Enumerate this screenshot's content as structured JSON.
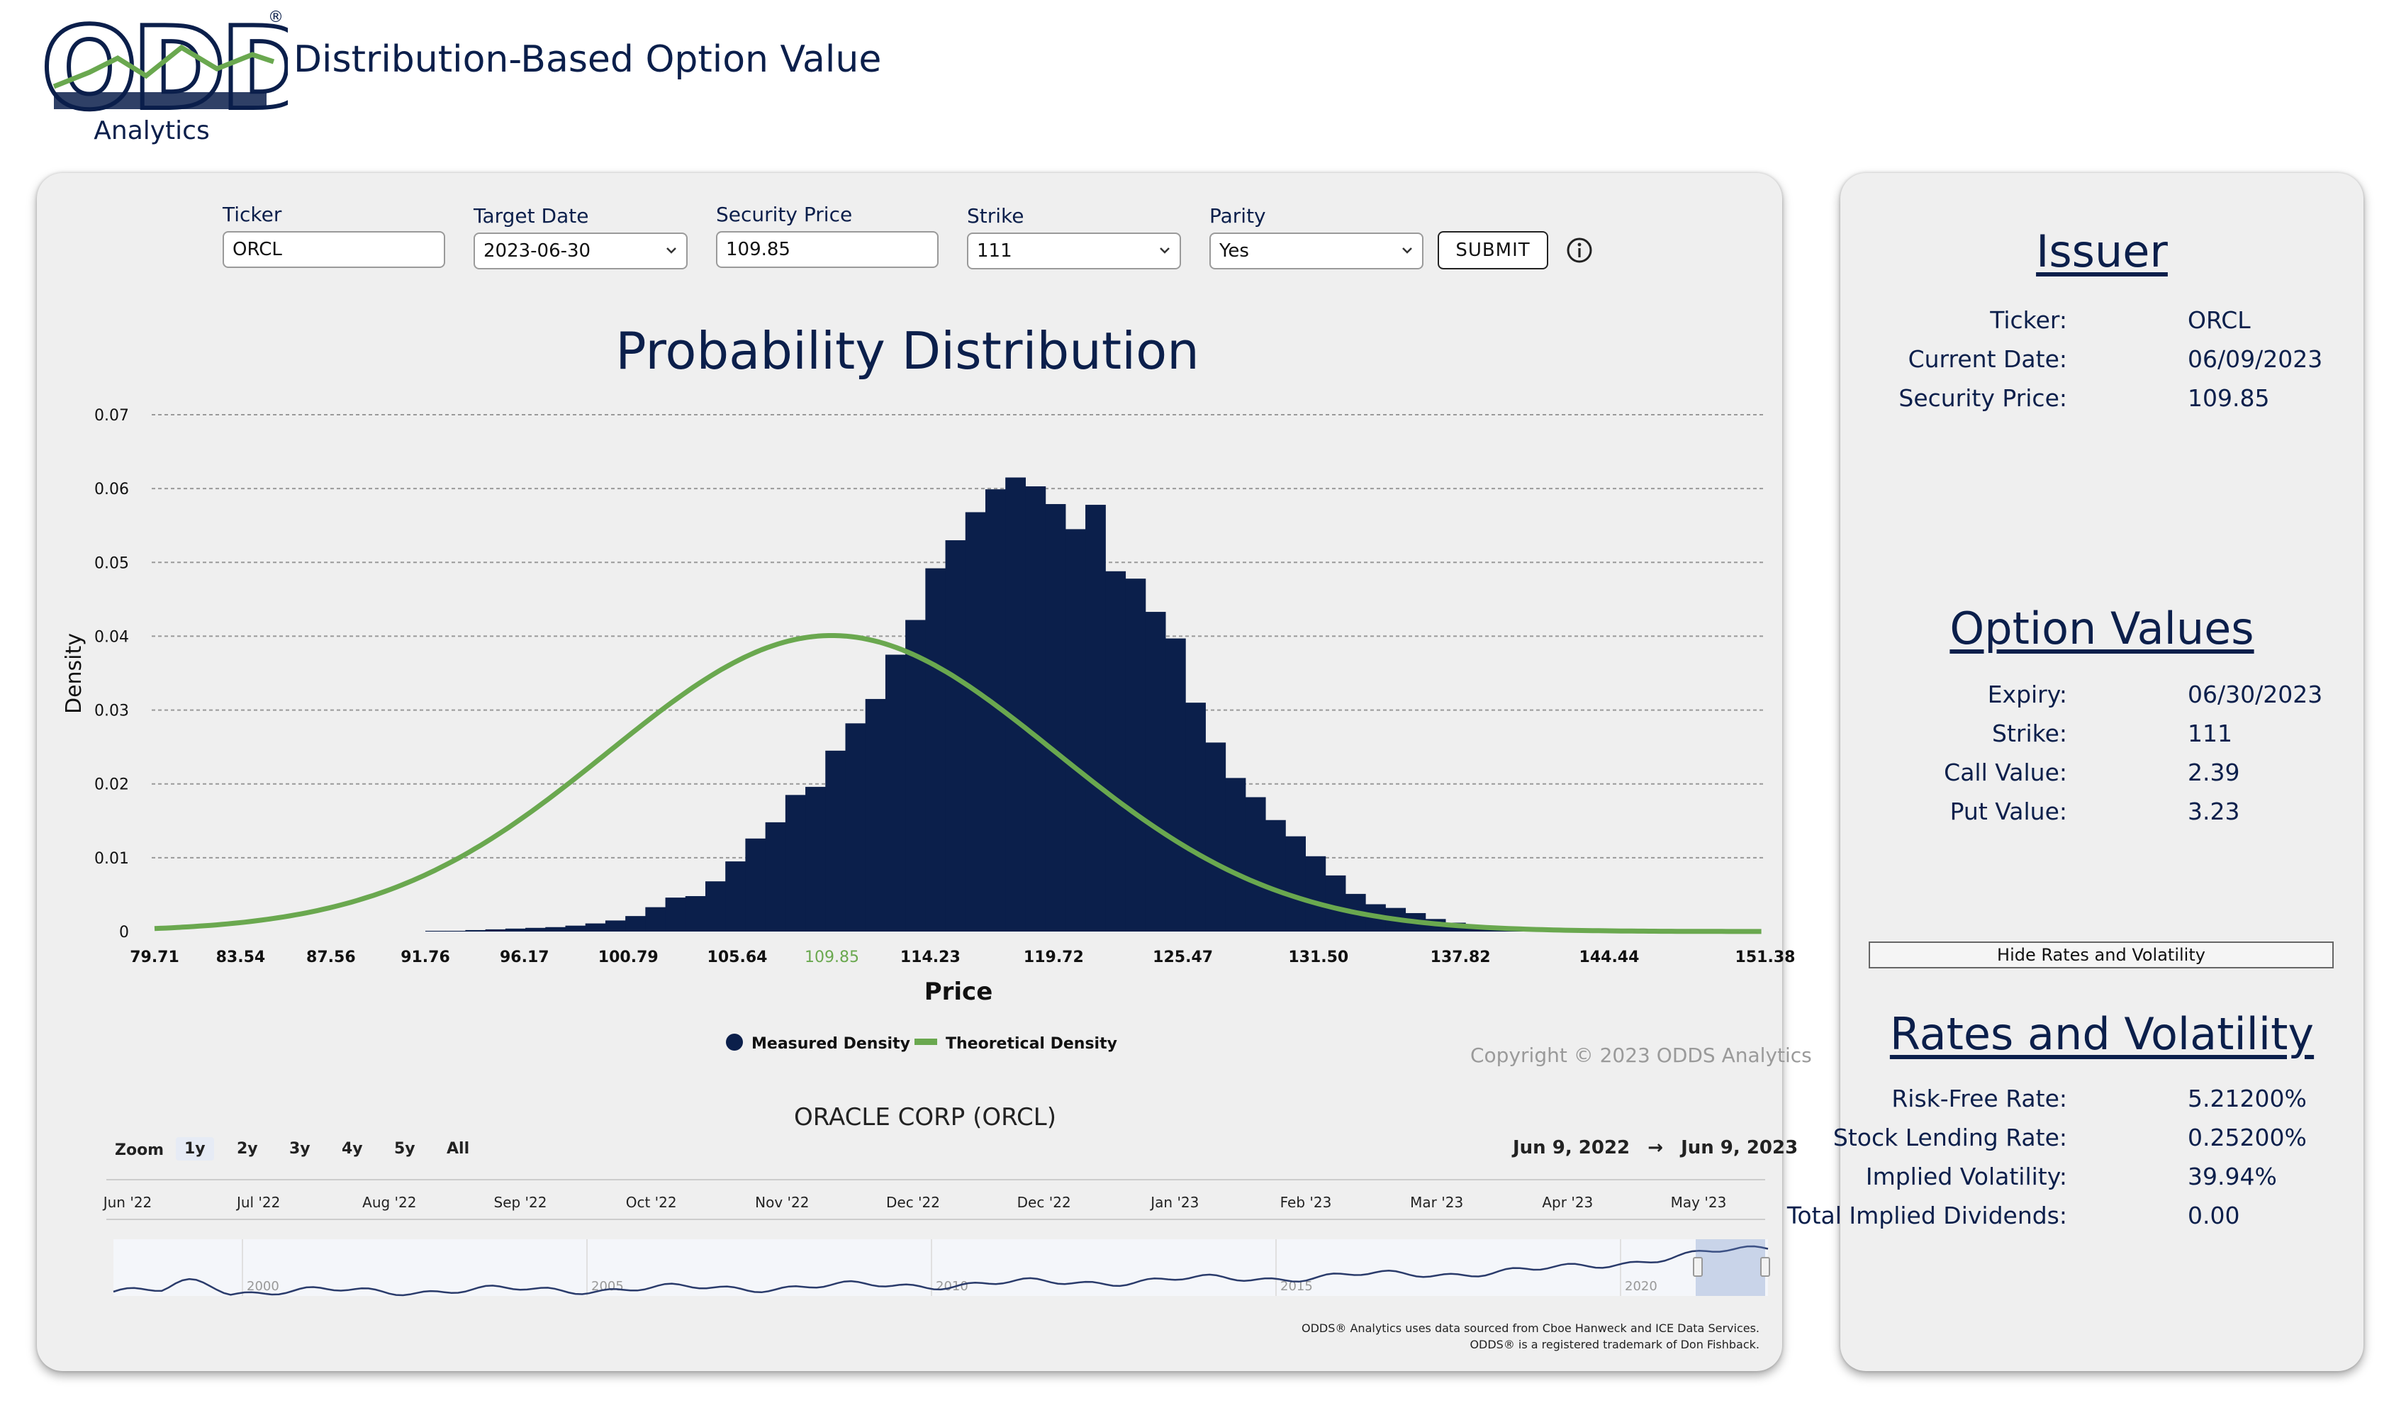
{
  "app": {
    "logo_text": "ODDS",
    "logo_trademark": "®",
    "logo_subtitle": "Analytics",
    "title": "Distribution-Based Option Value"
  },
  "form": {
    "ticker": {
      "label": "Ticker",
      "value": "ORCL"
    },
    "target_date": {
      "label": "Target Date",
      "value": "2023-06-30"
    },
    "security_price": {
      "label": "Security Price",
      "value": "109.85"
    },
    "strike": {
      "label": "Strike",
      "value": "111"
    },
    "parity": {
      "label": "Parity",
      "value": "Yes"
    },
    "submit_label": "SUBMIT",
    "info_icon": "info-circle-icon"
  },
  "chart_data": {
    "type": "bar",
    "title": "Probability Distribution",
    "xlabel": "Price",
    "ylabel": "Density",
    "x_range": [
      79.71,
      151.38
    ],
    "ylim": [
      0,
      0.07
    ],
    "y_ticks": [
      "0",
      "0.01",
      "0.02",
      "0.03",
      "0.04",
      "0.05",
      "0.06",
      "0.07"
    ],
    "x_ticks": [
      "79.71",
      "83.54",
      "87.56",
      "91.76",
      "96.17",
      "100.79",
      "105.64",
      "109.85",
      "114.23",
      "119.72",
      "125.47",
      "131.50",
      "137.82",
      "144.44",
      "151.38"
    ],
    "highlight_tick": "109.85",
    "highlight_color": "#6aa84f",
    "grid": true,
    "legend_position": "bottom-center",
    "series": [
      {
        "name": "Measured Density",
        "kind": "histogram",
        "color": "#0b1f4b",
        "x_start": 91.76,
        "bin_width": 0.89,
        "values": [
          0.0001,
          0.0001,
          0.0002,
          0.0003,
          0.0004,
          0.0005,
          0.0006,
          0.0008,
          0.0011,
          0.0015,
          0.0021,
          0.0033,
          0.0046,
          0.0048,
          0.0068,
          0.0095,
          0.0126,
          0.0148,
          0.0185,
          0.0196,
          0.0245,
          0.0282,
          0.0315,
          0.0375,
          0.0422,
          0.0492,
          0.053,
          0.0568,
          0.0599,
          0.0615,
          0.0603,
          0.0579,
          0.0545,
          0.0578,
          0.0488,
          0.0478,
          0.0433,
          0.0397,
          0.031,
          0.0256,
          0.0208,
          0.0182,
          0.0151,
          0.0129,
          0.0102,
          0.0076,
          0.0051,
          0.0037,
          0.0032,
          0.0025,
          0.0017,
          0.0012,
          0.0008,
          0.0006,
          0.0004,
          0.0003,
          0.0002,
          0.0001,
          0.0001,
          0.0001,
          0.0001,
          0.0001,
          0.0001
        ]
      },
      {
        "name": "Theoretical Density",
        "kind": "line",
        "color": "#6aa84f",
        "mean": 109.85,
        "std": 9.95
      }
    ]
  },
  "copyright": "Copyright © 2023 ODDS Analytics",
  "stock_chart": {
    "title": "ORACLE CORP (ORCL)",
    "zoom_label": "Zoom",
    "zoom_options": [
      "1y",
      "2y",
      "3y",
      "4y",
      "5y",
      "All"
    ],
    "zoom_active": "1y",
    "range_start": "Jun 9, 2022",
    "range_arrow": "→",
    "range_end": "Jun 9, 2023",
    "month_ticks": [
      "Jun '22",
      "Jul '22",
      "Aug '22",
      "Sep '22",
      "Oct '22",
      "Nov '22",
      "Dec '22",
      "Dec '22",
      "Jan '23",
      "Feb '23",
      "Mar '23",
      "Apr '23",
      "May '23"
    ],
    "navigator_years": [
      "2000",
      "2005",
      "2010",
      "2015",
      "2020"
    ]
  },
  "footer": {
    "note1": "ODDS® Analytics uses data sourced from Cboe Hanweck and ICE Data Services.",
    "note2": "ODDS® is a registered trademark of Don Fishback."
  },
  "issuer": {
    "title": "Issuer",
    "rows": [
      {
        "key": "Ticker:",
        "value": "ORCL"
      },
      {
        "key": "Current Date:",
        "value": "06/09/2023"
      },
      {
        "key": "Security Price:",
        "value": "109.85"
      }
    ]
  },
  "option_values": {
    "title": "Option Values",
    "rows": [
      {
        "key": "Expiry:",
        "value": "06/30/2023"
      },
      {
        "key": "Strike:",
        "value": "111"
      },
      {
        "key": "Call Value:",
        "value": "2.39"
      },
      {
        "key": "Put Value:",
        "value": "3.23"
      }
    ]
  },
  "toggle_button_label": "Hide Rates and Volatility",
  "rates": {
    "title": "Rates and Volatility",
    "rows": [
      {
        "key": "Risk-Free Rate:",
        "value": "5.21200%"
      },
      {
        "key": "Stock Lending Rate:",
        "value": "0.25200%"
      },
      {
        "key": "Implied Volatility:",
        "value": "39.94%"
      },
      {
        "key": "Total Implied Dividends:",
        "value": "0.00"
      }
    ]
  }
}
